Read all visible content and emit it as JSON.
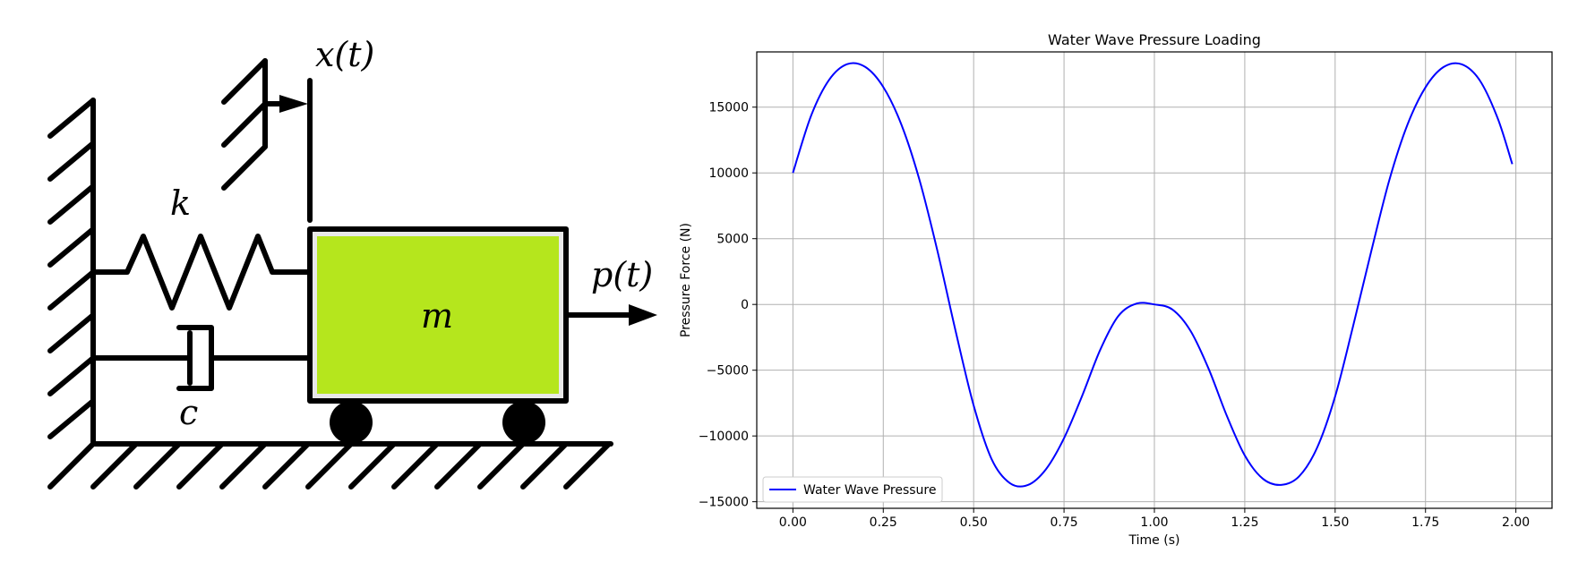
{
  "diagram": {
    "labels": {
      "displacement": "x(t)",
      "spring": "k",
      "damper": "c",
      "mass": "m",
      "force": "p(t)"
    },
    "colors": {
      "ink": "#000000",
      "mass_fill": "#b5e61d",
      "mass_inner": "#e8e8e8"
    }
  },
  "chart_data": {
    "type": "line",
    "title": "Water Wave Pressure Loading",
    "xlabel": "Time (s)",
    "ylabel": "Pressure Force (N)",
    "xlim": [
      -0.1,
      2.1
    ],
    "ylim": [
      -15500,
      19200
    ],
    "xticks": [
      0.0,
      0.25,
      0.5,
      0.75,
      1.0,
      1.25,
      1.5,
      1.75,
      2.0
    ],
    "xtick_labels": [
      "0.00",
      "0.25",
      "0.50",
      "0.75",
      "1.00",
      "1.25",
      "1.50",
      "1.75",
      "2.00"
    ],
    "yticks": [
      -15000,
      -10000,
      -5000,
      0,
      5000,
      10000,
      15000
    ],
    "ytick_labels": [
      "−15000",
      "−10000",
      "−5000",
      "0",
      "5000",
      "10000",
      "15000"
    ],
    "grid": true,
    "legend": {
      "location": "lower-left",
      "entries": [
        "Water Wave Pressure"
      ]
    },
    "series": [
      {
        "name": "Water Wave Pressure",
        "color": "#0000ff",
        "x": [
          0.0,
          0.05,
          0.1,
          0.15,
          0.2,
          0.25,
          0.3,
          0.35,
          0.4,
          0.45,
          0.5,
          0.55,
          0.6,
          0.65,
          0.7,
          0.75,
          0.8,
          0.85,
          0.9,
          0.95,
          1.0,
          1.05,
          1.1,
          1.15,
          1.2,
          1.25,
          1.3,
          1.35,
          1.4,
          1.45,
          1.5,
          1.55,
          1.6,
          1.65,
          1.7,
          1.75,
          1.8,
          1.85,
          1.9,
          1.95,
          1.99
        ],
        "y": [
          10000,
          14330,
          17070,
          18270,
          18060,
          16530,
          13680,
          9480,
          4050,
          -2010,
          -7680,
          -11780,
          -13580,
          -13730,
          -12530,
          -10170,
          -6960,
          -3460,
          -890,
          60,
          0,
          -390,
          -2010,
          -4890,
          -8440,
          -11480,
          -13250,
          -13720,
          -13080,
          -10900,
          -6990,
          -1610,
          4050,
          9460,
          13660,
          16510,
          18050,
          18260,
          17040,
          14130,
          10670
        ]
      }
    ]
  }
}
